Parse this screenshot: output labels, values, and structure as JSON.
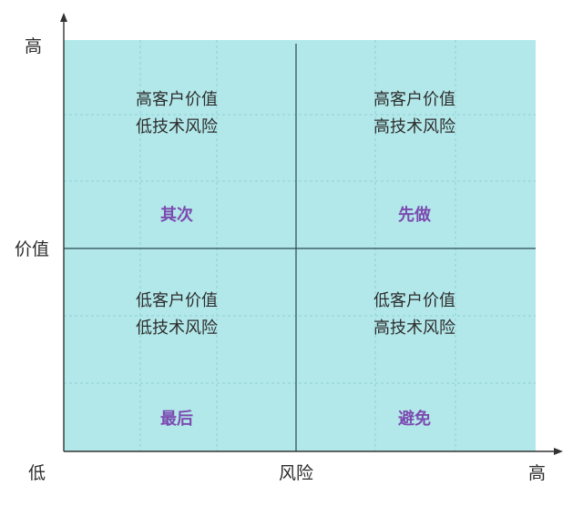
{
  "axes": {
    "y_label": "价值",
    "x_label": "风险",
    "y_high": "高",
    "origin_low": "低",
    "x_high": "高"
  },
  "quadrants": {
    "top_left": {
      "line1": "高客户价值",
      "line2": "低技术风险",
      "action": "其次"
    },
    "top_right": {
      "line1": "高客户价值",
      "line2": "高技术风险",
      "action": "先做"
    },
    "bottom_left": {
      "line1": "低客户价值",
      "line2": "低技术风险",
      "action": "最后"
    },
    "bottom_right": {
      "line1": "低客户价值",
      "line2": "高技术风险",
      "action": "避免"
    }
  },
  "colors": {
    "fill": "#b3e8ea",
    "action_text": "#7b4bb0",
    "axis": "#333333",
    "grid": "#8ccfd2"
  }
}
